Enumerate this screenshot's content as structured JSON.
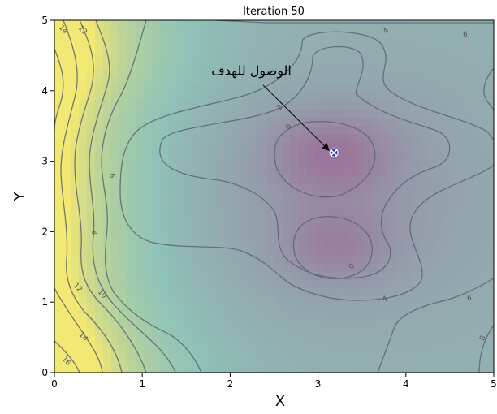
{
  "chart_data": {
    "type": "contour",
    "title": "Iteration 50",
    "xlabel": "X",
    "ylabel": "Y",
    "xlim": [
      0,
      5
    ],
    "ylim": [
      0,
      5
    ],
    "x_ticks": [
      "0",
      "1",
      "2",
      "3",
      "4",
      "5"
    ],
    "y_ticks": [
      "0",
      "1",
      "2",
      "3",
      "4",
      "5"
    ],
    "contour_level_labels": [
      "0",
      "0",
      "2",
      "4",
      "4",
      "6",
      "6",
      "6",
      "8",
      "8",
      "10",
      "12",
      "12",
      "14",
      "14",
      "16"
    ],
    "colormap": {
      "low": "#a0518f",
      "mid": "#8fc3b8",
      "high": "#f2e873"
    },
    "marker": {
      "x": 3.18,
      "y": 3.12,
      "color": "#2c3cc9"
    },
    "annotation": {
      "text": "الوصول للهدف",
      "x": 1.45,
      "y": 4.22
    }
  }
}
